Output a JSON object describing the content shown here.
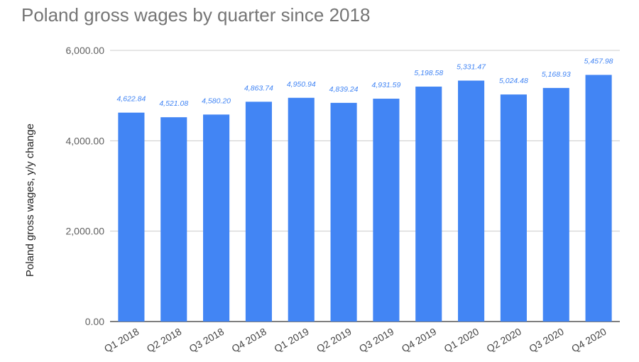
{
  "chart_data": {
    "type": "bar",
    "title": "Poland gross wages by quarter since 2018",
    "xlabel": "",
    "ylabel": "Poland gross wages, y/y change",
    "categories": [
      "Q1 2018",
      "Q2 2018",
      "Q3 2018",
      "Q4 2018",
      "Q1 2019",
      "Q2 2019",
      "Q3 2019",
      "Q4 2019",
      "Q1 2020",
      "Q2 2020",
      "Q3 2020",
      "Q4 2020"
    ],
    "values": [
      4622.84,
      4521.08,
      4580.2,
      4863.74,
      4950.94,
      4839.24,
      4931.59,
      5198.58,
      5331.47,
      5024.48,
      5168.93,
      5457.98
    ],
    "data_labels": [
      "4,622.84",
      "4,521.08",
      "4,580.20",
      "4,863.74",
      "4,950.94",
      "4,839.24",
      "4,931.59",
      "5,198.58",
      "5,331.47",
      "5,024.48",
      "5,168.93",
      "5,457.98"
    ],
    "yticks": [
      0,
      2000,
      4000,
      6000
    ],
    "ytick_labels": [
      "0.00",
      "2,000.00",
      "4,000.00",
      "6,000.00"
    ],
    "ylim": [
      0,
      6000
    ],
    "grid": true,
    "legend": "none",
    "bar_color": "#4285f4"
  }
}
